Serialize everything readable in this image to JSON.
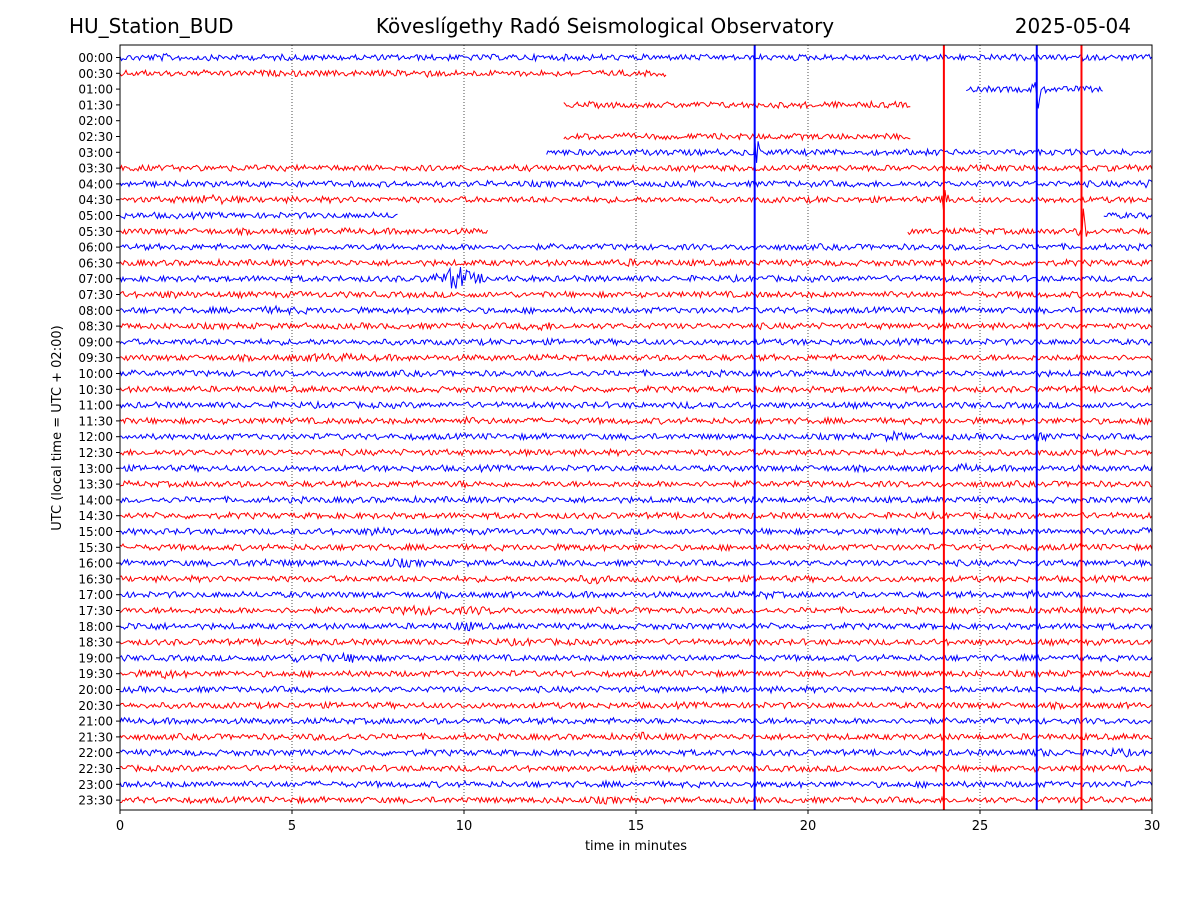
{
  "header": {
    "station": "HU_Station_BUD",
    "observatory": "Köveslígethy Radó Seismological Observatory",
    "date": "2025-05-04"
  },
  "chart_data": {
    "type": "line",
    "title": "Köveslígethy Radó Seismological Observatory",
    "xlabel": "time in minutes",
    "ylabel": "UTC (local time = UTC + 02:00)",
    "xlim": [
      0,
      30
    ],
    "x_ticks": [
      0,
      5,
      10,
      15,
      20,
      25,
      30
    ],
    "grid": "vertical dotted at x ticks",
    "colors": {
      "even_rows": "#0000ff",
      "odd_rows": "#ff0000"
    },
    "rows": [
      {
        "label": "00:00",
        "segments": [
          [
            0,
            30
          ]
        ],
        "bursts": [
          [
            1.3,
            0.3,
            1.2
          ]
        ]
      },
      {
        "label": "00:30",
        "segments": [
          [
            0,
            15.9
          ]
        ],
        "bursts": [
          [
            8.7,
            0.25,
            1.4
          ]
        ]
      },
      {
        "label": "01:00",
        "segments": [
          [
            24.6,
            28.6
          ]
        ],
        "bursts": [
          [
            26.7,
            0.08,
            5
          ]
        ]
      },
      {
        "label": "01:30",
        "segments": [
          [
            12.9,
            23.0
          ]
        ],
        "bursts": []
      },
      {
        "label": "02:00",
        "segments": [],
        "bursts": []
      },
      {
        "label": "02:30",
        "segments": [
          [
            12.9,
            23.0
          ]
        ],
        "bursts": []
      },
      {
        "label": "03:00",
        "segments": [
          [
            12.4,
            30
          ]
        ],
        "bursts": [
          [
            18.5,
            0.05,
            6
          ]
        ]
      },
      {
        "label": "03:30",
        "segments": [
          [
            0,
            30
          ]
        ],
        "bursts": []
      },
      {
        "label": "04:00",
        "segments": [
          [
            0,
            30
          ]
        ],
        "bursts": [
          [
            29.8,
            0.2,
            1.3
          ]
        ]
      },
      {
        "label": "04:30",
        "segments": [
          [
            0,
            30
          ]
        ],
        "bursts": [
          [
            2.6,
            0.4,
            1.6
          ],
          [
            24.0,
            0.05,
            6
          ]
        ]
      },
      {
        "label": "05:00",
        "segments": [
          [
            0,
            8.1
          ],
          [
            28.6,
            30
          ]
        ],
        "bursts": []
      },
      {
        "label": "05:30",
        "segments": [
          [
            0,
            10.7
          ],
          [
            22.9,
            30
          ]
        ],
        "bursts": [
          [
            28.0,
            0.05,
            6
          ]
        ]
      },
      {
        "label": "06:00",
        "segments": [
          [
            0,
            30
          ]
        ],
        "bursts": []
      },
      {
        "label": "06:30",
        "segments": [
          [
            0,
            30
          ]
        ],
        "bursts": [
          [
            14.8,
            0.3,
            1.2
          ]
        ]
      },
      {
        "label": "07:00",
        "segments": [
          [
            0,
            30
          ]
        ],
        "bursts": [
          [
            9.8,
            0.35,
            3.5
          ]
        ]
      },
      {
        "label": "07:30",
        "segments": [
          [
            0,
            30
          ]
        ],
        "bursts": [
          [
            1.5,
            0.3,
            1.3
          ]
        ]
      },
      {
        "label": "08:00",
        "segments": [
          [
            0,
            30
          ]
        ],
        "bursts": [
          [
            4.6,
            0.5,
            1.3
          ]
        ]
      },
      {
        "label": "08:30",
        "segments": [
          [
            0,
            30
          ]
        ],
        "bursts": [
          [
            12.2,
            0.3,
            1.5
          ]
        ]
      },
      {
        "label": "09:00",
        "segments": [
          [
            0,
            30
          ]
        ],
        "bursts": []
      },
      {
        "label": "09:30",
        "segments": [
          [
            0,
            30
          ]
        ],
        "bursts": [
          [
            6.1,
            0.6,
            1.4
          ]
        ]
      },
      {
        "label": "10:00",
        "segments": [
          [
            0,
            30
          ]
        ],
        "bursts": []
      },
      {
        "label": "10:30",
        "segments": [
          [
            0,
            30
          ]
        ],
        "bursts": []
      },
      {
        "label": "11:00",
        "segments": [
          [
            0,
            30
          ]
        ],
        "bursts": [
          [
            16.5,
            0.2,
            1.2
          ]
        ]
      },
      {
        "label": "11:30",
        "segments": [
          [
            0,
            30
          ]
        ],
        "bursts": [
          [
            10.1,
            0.15,
            1.3
          ]
        ]
      },
      {
        "label": "12:00",
        "segments": [
          [
            0,
            30
          ]
        ],
        "bursts": [
          [
            22.5,
            0.3,
            1.5
          ],
          [
            26.7,
            0.3,
            1.4
          ]
        ]
      },
      {
        "label": "12:30",
        "segments": [
          [
            0,
            30
          ]
        ],
        "bursts": []
      },
      {
        "label": "13:00",
        "segments": [
          [
            0,
            30
          ]
        ],
        "bursts": [
          [
            24.6,
            0.3,
            1.3
          ]
        ]
      },
      {
        "label": "13:30",
        "segments": [
          [
            0,
            30
          ]
        ],
        "bursts": [
          [
            10.0,
            0.2,
            1.2
          ]
        ]
      },
      {
        "label": "14:00",
        "segments": [
          [
            0,
            30
          ]
        ],
        "bursts": []
      },
      {
        "label": "14:30",
        "segments": [
          [
            0,
            30
          ]
        ],
        "bursts": []
      },
      {
        "label": "15:00",
        "segments": [
          [
            0,
            30
          ]
        ],
        "bursts": [
          [
            7.5,
            0.3,
            1.5
          ],
          [
            29.8,
            0.2,
            1.3
          ]
        ]
      },
      {
        "label": "15:30",
        "segments": [
          [
            0,
            30
          ]
        ],
        "bursts": [
          [
            13.3,
            0.2,
            1.2
          ]
        ]
      },
      {
        "label": "16:00",
        "segments": [
          [
            0,
            30
          ]
        ],
        "bursts": [
          [
            4.2,
            0.6,
            1.3
          ],
          [
            8.1,
            0.4,
            1.4
          ]
        ]
      },
      {
        "label": "16:30",
        "segments": [
          [
            0,
            30
          ]
        ],
        "bursts": [
          [
            13.8,
            0.3,
            1.5
          ]
        ]
      },
      {
        "label": "17:00",
        "segments": [
          [
            0,
            30
          ]
        ],
        "bursts": [
          [
            26.7,
            0.3,
            1.4
          ],
          [
            18.8,
            0.2,
            1.3
          ]
        ]
      },
      {
        "label": "17:30",
        "segments": [
          [
            0,
            30
          ]
        ],
        "bursts": [
          [
            8.6,
            0.5,
            1.5
          ],
          [
            10.4,
            0.5,
            1.3
          ]
        ]
      },
      {
        "label": "18:00",
        "segments": [
          [
            0,
            30
          ]
        ],
        "bursts": [
          [
            10.0,
            0.3,
            1.6
          ],
          [
            0.6,
            0.4,
            1.3
          ]
        ]
      },
      {
        "label": "18:30",
        "segments": [
          [
            0,
            30
          ]
        ],
        "bursts": [
          [
            11.8,
            0.6,
            1.2
          ]
        ]
      },
      {
        "label": "19:00",
        "segments": [
          [
            0,
            30
          ]
        ],
        "bursts": [
          [
            5.2,
            0.6,
            1.3
          ],
          [
            6.8,
            0.6,
            1.4
          ]
        ]
      },
      {
        "label": "19:30",
        "segments": [
          [
            0,
            30
          ]
        ],
        "bursts": [
          [
            1.3,
            0.3,
            1.5
          ]
        ]
      },
      {
        "label": "20:00",
        "segments": [
          [
            0,
            30
          ]
        ],
        "bursts": []
      },
      {
        "label": "20:30",
        "segments": [
          [
            0,
            30
          ]
        ],
        "bursts": []
      },
      {
        "label": "21:00",
        "segments": [
          [
            0,
            30
          ]
        ],
        "bursts": [
          [
            19.8,
            0.3,
            1.2
          ]
        ]
      },
      {
        "label": "21:30",
        "segments": [
          [
            0,
            30
          ]
        ],
        "bursts": [
          [
            6.4,
            0.4,
            1.4
          ],
          [
            15.2,
            0.2,
            1.3
          ]
        ]
      },
      {
        "label": "22:00",
        "segments": [
          [
            0,
            30
          ]
        ],
        "bursts": [
          [
            29.0,
            0.3,
            1.4
          ],
          [
            26.8,
            0.3,
            1.3
          ]
        ]
      },
      {
        "label": "22:30",
        "segments": [
          [
            0,
            30
          ]
        ],
        "bursts": [
          [
            23.5,
            0.3,
            1.2
          ]
        ]
      },
      {
        "label": "23:00",
        "segments": [
          [
            0,
            30
          ]
        ],
        "bursts": []
      },
      {
        "label": "23:30",
        "segments": [
          [
            0,
            30
          ]
        ],
        "bursts": [
          [
            28.5,
            0.6,
            1.2
          ],
          [
            14.1,
            0.5,
            1.2
          ]
        ]
      }
    ],
    "major_events": [
      {
        "x": 18.45,
        "color": "#0000ff"
      },
      {
        "x": 23.95,
        "color": "#ff0000"
      },
      {
        "x": 26.65,
        "color": "#0000ff"
      },
      {
        "x": 27.95,
        "color": "#ff0000"
      }
    ]
  }
}
